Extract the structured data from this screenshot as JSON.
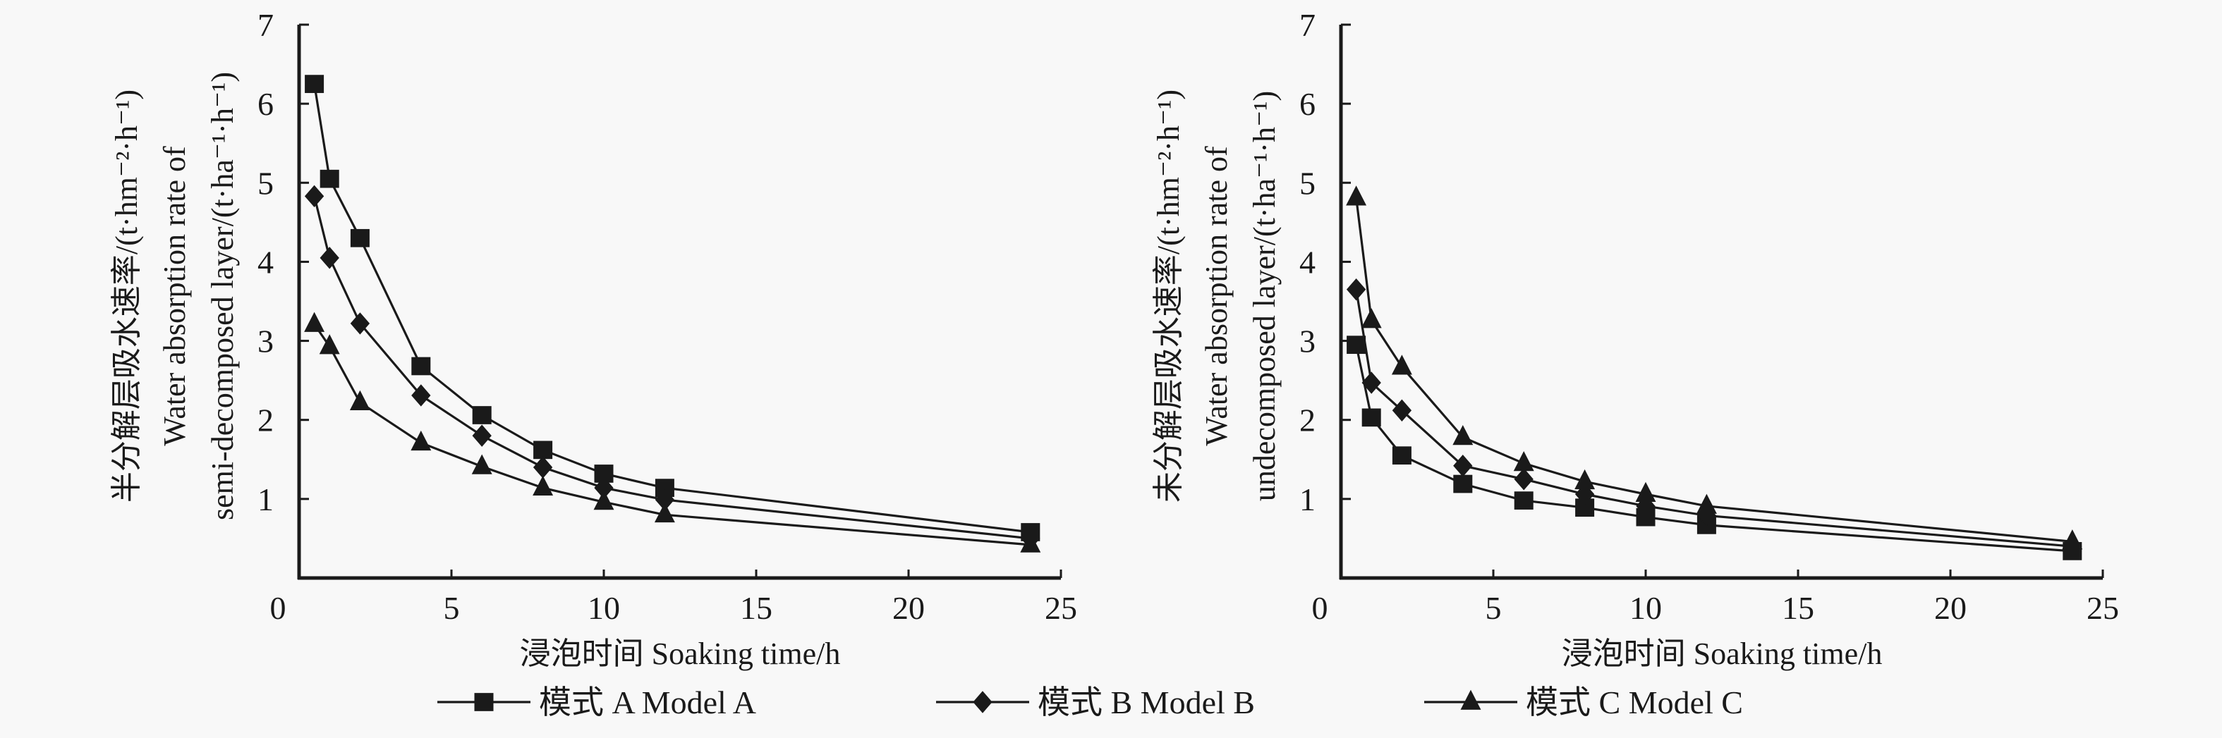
{
  "chart_data": [
    {
      "type": "line",
      "panel": "left",
      "title": "",
      "xlabel": "浸泡时间 Soaking time/h",
      "ylabel_lines": [
        "半分解层吸水速率/(t·hm⁻²·h⁻¹)",
        "Water absorption rate of",
        "semi-decomposed layer/(t·ha⁻¹·h⁻¹)"
      ],
      "xlim": [
        0,
        25
      ],
      "ylim": [
        0,
        7
      ],
      "xticks": [
        "0",
        "5",
        "10",
        "15",
        "20",
        "25"
      ],
      "xtick_values": [
        0,
        5,
        10,
        15,
        20,
        25
      ],
      "yticks": [
        "1",
        "2",
        "3",
        "4",
        "5",
        "6",
        "7"
      ],
      "ytick_values": [
        1,
        2,
        3,
        4,
        5,
        6,
        7
      ],
      "grid": false,
      "x": [
        0.5,
        1,
        2,
        4,
        6,
        8,
        10,
        12,
        24
      ],
      "series": [
        {
          "name": "模式 A Model A",
          "marker": "square",
          "values": [
            6.25,
            5.05,
            4.3,
            2.68,
            2.06,
            1.62,
            1.32,
            1.14,
            0.58
          ]
        },
        {
          "name": "模式 B Model B",
          "marker": "diamond",
          "values": [
            4.83,
            4.05,
            3.22,
            2.31,
            1.8,
            1.4,
            1.14,
            0.99,
            0.5
          ]
        },
        {
          "name": "模式 C Model C",
          "marker": "triangle",
          "values": [
            3.21,
            2.93,
            2.22,
            1.71,
            1.41,
            1.14,
            0.96,
            0.8,
            0.42
          ]
        }
      ]
    },
    {
      "type": "line",
      "panel": "right",
      "title": "",
      "xlabel": "浸泡时间 Soaking time/h",
      "ylabel_lines": [
        "未分解层吸水速率/(t·hm⁻²·h⁻¹)",
        "Water absorption rate of",
        "undecomposed layer/(t·ha⁻¹·h⁻¹)"
      ],
      "xlim": [
        0,
        25
      ],
      "ylim": [
        0,
        7
      ],
      "xticks": [
        "0",
        "5",
        "10",
        "15",
        "20",
        "25"
      ],
      "xtick_values": [
        0,
        5,
        10,
        15,
        20,
        25
      ],
      "yticks": [
        "1",
        "2",
        "3",
        "4",
        "5",
        "6",
        "7"
      ],
      "ytick_values": [
        1,
        2,
        3,
        4,
        5,
        6,
        7
      ],
      "grid": false,
      "x": [
        0.5,
        1,
        2,
        4,
        6,
        8,
        10,
        12,
        24
      ],
      "series": [
        {
          "name": "模式 A Model A",
          "marker": "square",
          "values": [
            2.95,
            2.03,
            1.55,
            1.19,
            0.98,
            0.89,
            0.77,
            0.67,
            0.34
          ]
        },
        {
          "name": "模式 B Model B",
          "marker": "diamond",
          "values": [
            3.65,
            2.47,
            2.12,
            1.42,
            1.25,
            1.06,
            0.91,
            0.79,
            0.4
          ]
        },
        {
          "name": "模式 C Model C",
          "marker": "triangle",
          "values": [
            4.81,
            3.26,
            2.67,
            1.78,
            1.45,
            1.22,
            1.06,
            0.91,
            0.46
          ]
        }
      ]
    }
  ],
  "legend": {
    "placement": "bottom-center",
    "items": [
      {
        "label": "模式 A Model A",
        "marker": "square"
      },
      {
        "label": "模式 B Model B",
        "marker": "diamond"
      },
      {
        "label": "模式 C Model C",
        "marker": "triangle"
      }
    ]
  },
  "colors": {
    "ink": "#1a1a1a",
    "background": "#f8f8f8"
  }
}
